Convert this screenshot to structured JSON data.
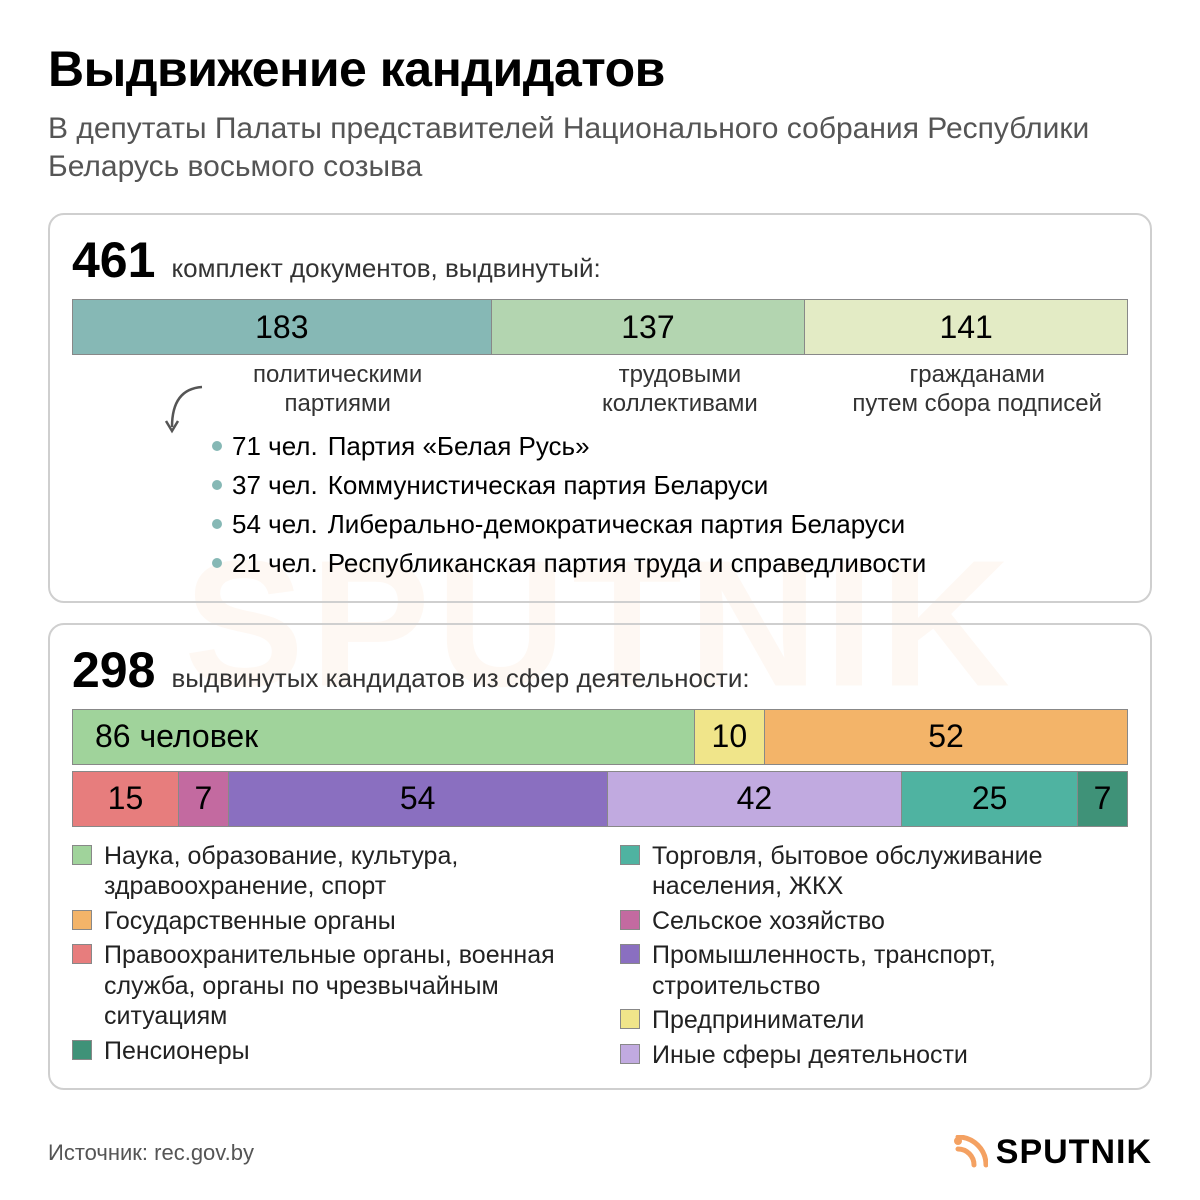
{
  "colors": {
    "text": "#000000",
    "subtext": "#555555",
    "panel_border": "#cfcfcf",
    "seg_border": "#888888",
    "brand_orange": "#f4a162"
  },
  "header": {
    "title": "Выдвижение кандидатов",
    "subtitle": "В депутаты Палаты представителей Национального собрания Республики Беларусь восьмого созыва"
  },
  "panel1": {
    "number": "461",
    "caption": "комплект документов, выдвинутый:",
    "segments": [
      {
        "value": "183",
        "flex": 183,
        "color": "#86b8b5",
        "label": "политическими партиями"
      },
      {
        "value": "137",
        "flex": 137,
        "color": "#b3d5b0",
        "label": "трудовыми коллективами"
      },
      {
        "value": "141",
        "flex": 141,
        "color": "#e3ebc5",
        "label": "гражданами путем сбора подписей"
      }
    ],
    "parties": [
      {
        "count": "71 чел.",
        "name": "Партия «Белая Русь»"
      },
      {
        "count": "37 чел.",
        "name": "Коммунистическая партия Беларуси"
      },
      {
        "count": "54 чел.",
        "name": "Либерально-демократическая партия Беларуси"
      },
      {
        "count": "21 чел.",
        "name": "Республиканская партия труда и справедливости"
      }
    ],
    "party_bullet_color": "#86b8b5"
  },
  "panel2": {
    "number": "298",
    "caption": "выдвинутых кандидатов из сфер деятельности:",
    "row1": [
      {
        "value": "86 человек",
        "flex": 86,
        "color": "#a0d39b",
        "align": "left"
      },
      {
        "value": "10",
        "flex": 10,
        "color": "#f0e58a",
        "align": "center"
      },
      {
        "value": "52",
        "flex": 52,
        "color": "#f3b469",
        "align": "center"
      }
    ],
    "row2": [
      {
        "value": "15",
        "flex": 15,
        "color": "#e77d7d",
        "align": "center"
      },
      {
        "value": "7",
        "flex": 7,
        "color": "#c36aa0",
        "align": "center"
      },
      {
        "value": "54",
        "flex": 54,
        "color": "#8a6fc0",
        "align": "center"
      },
      {
        "value": "42",
        "flex": 42,
        "color": "#c1aae0",
        "align": "center"
      },
      {
        "value": "25",
        "flex": 25,
        "color": "#4fb3a1",
        "align": "center"
      },
      {
        "value": "7",
        "flex": 7,
        "color": "#3f9278",
        "align": "center"
      }
    ],
    "legend_left": [
      {
        "color": "#a0d39b",
        "label": "Наука, образование, культура, здравоохранение, спорт"
      },
      {
        "color": "#f3b469",
        "label": "Государственные органы"
      },
      {
        "color": "#e77d7d",
        "label": "Правоохранительные органы, военная служба, органы по чрезвычайным ситуациям"
      },
      {
        "color": "#3f9278",
        "label": "Пенсионеры"
      }
    ],
    "legend_right": [
      {
        "color": "#4fb3a1",
        "label": "Торговля, бытовое обслуживание населения, ЖКХ"
      },
      {
        "color": "#c36aa0",
        "label": "Сельское хозяйство"
      },
      {
        "color": "#8a6fc0",
        "label": "Промышленность, транспорт, строительство"
      },
      {
        "color": "#f0e58a",
        "label": "Предприниматели"
      },
      {
        "color": "#c1aae0",
        "label": "Иные сферы деятельности"
      }
    ]
  },
  "footer": {
    "source": "Источник: rec.gov.by",
    "brand": "SPUTNIK"
  },
  "watermark": "SPUTNIK"
}
